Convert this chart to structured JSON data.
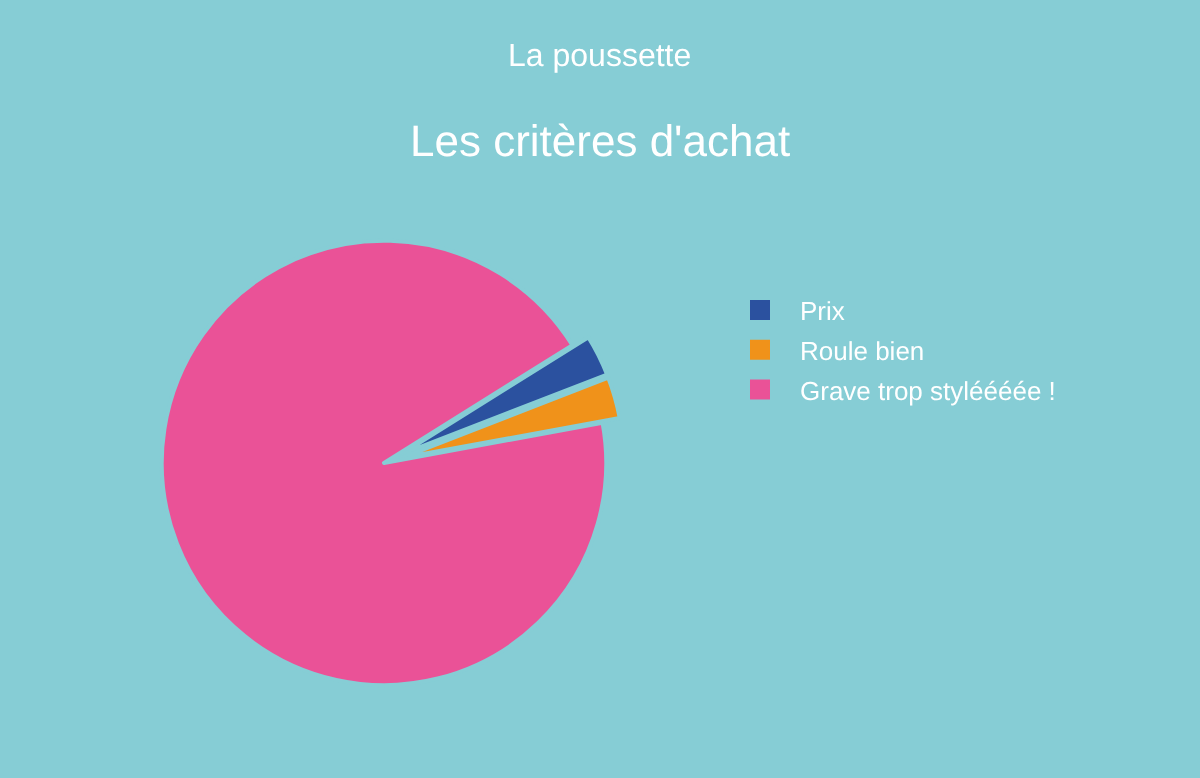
{
  "chart_data": {
    "type": "pie",
    "subtitle": "La poussette",
    "title": "Les critères d'achat",
    "categories": [
      "Prix",
      "Roule bien",
      "Grave trop styléééée !"
    ],
    "values": [
      3,
      3,
      94
    ],
    "colors": [
      "#2b519f",
      "#f0921a",
      "#ea5297"
    ],
    "legend": "right"
  }
}
